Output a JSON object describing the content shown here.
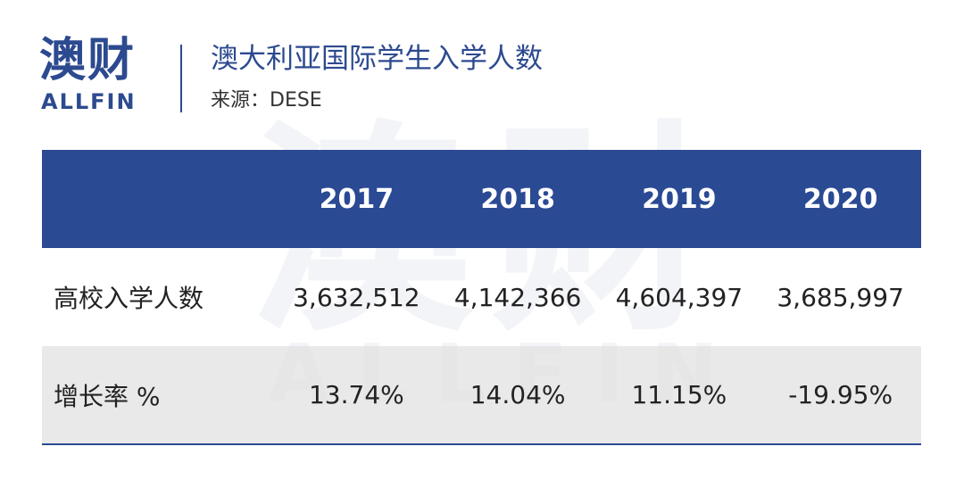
{
  "header": {
    "logo": "澳财",
    "logo_sub": "ALLFIN",
    "title": "澳大利亚国际学生入学人数",
    "source": "来源：DESE"
  },
  "table": {
    "columns": [
      "2017",
      "2018",
      "2019",
      "2020"
    ],
    "rows": [
      {
        "label": "高校入学人数",
        "cells": [
          "3,632,512",
          "4,142,366",
          "4,604,397",
          "3,685,997"
        ]
      },
      {
        "label": "增长率 %",
        "cells": [
          "13.74%",
          "14.04%",
          "11.15%",
          "-19.95%"
        ]
      }
    ]
  }
}
